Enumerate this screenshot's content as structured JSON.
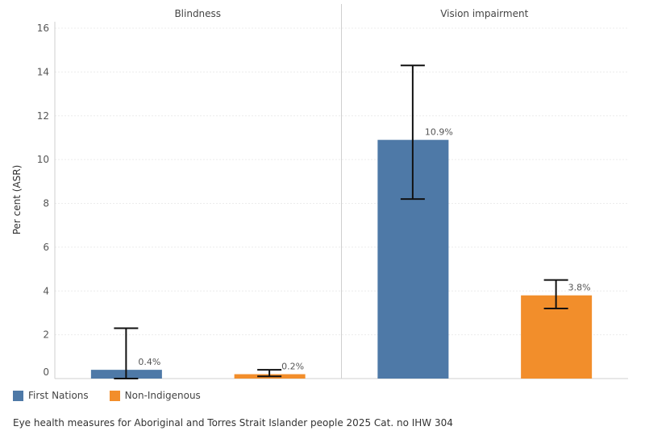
{
  "chart_data": {
    "type": "bar",
    "ylabel": "Per cent (ASR)",
    "ylim": [
      0,
      16
    ],
    "yticks": [
      0,
      2,
      4,
      6,
      8,
      10,
      12,
      14,
      16
    ],
    "grid": true,
    "panels": [
      {
        "title": "Blindness",
        "bars": [
          {
            "series": "First Nations",
            "value": 0.4,
            "label": "0.4%",
            "ci": [
              0.0,
              2.3
            ]
          },
          {
            "series": "Non-Indigenous",
            "value": 0.2,
            "label": "0.2%",
            "ci": [
              0.1,
              0.4
            ]
          }
        ]
      },
      {
        "title": "Vision impairment",
        "bars": [
          {
            "series": "First Nations",
            "value": 10.9,
            "label": "10.9%",
            "ci": [
              8.2,
              14.3
            ]
          },
          {
            "series": "Non-Indigenous",
            "value": 3.8,
            "label": "3.8%",
            "ci": [
              3.2,
              4.5
            ]
          }
        ]
      }
    ],
    "series": [
      {
        "name": "First Nations",
        "color": "#4e79a7"
      },
      {
        "name": "Non-Indigenous",
        "color": "#f28e2b"
      }
    ],
    "legend_position": "bottom-left"
  },
  "source_note": "Eye health measures for Aboriginal and Torres Strait Islander people 2025 Cat. no IHW 304"
}
